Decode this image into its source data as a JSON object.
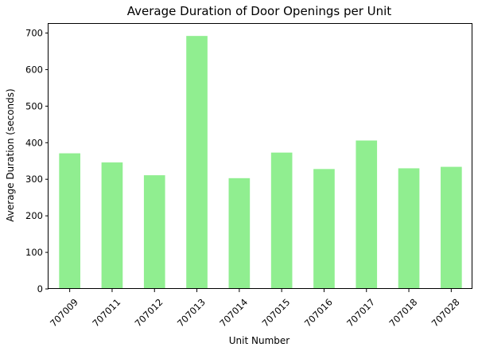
{
  "chart_data": {
    "type": "bar",
    "title": "Average Duration of Door Openings per Unit",
    "xlabel": "Unit Number",
    "ylabel": "Average Duration (seconds)",
    "categories": [
      "707009",
      "707011",
      "707012",
      "707013",
      "707014",
      "707015",
      "707016",
      "707017",
      "707018",
      "707028"
    ],
    "values": [
      371,
      346,
      311,
      692,
      303,
      373,
      328,
      406,
      330,
      334
    ],
    "ylim": [
      0,
      725
    ],
    "yticks": [
      0,
      100,
      200,
      300,
      400,
      500,
      600,
      700
    ],
    "grid": false,
    "legend": "none",
    "bar_color": "#90ee90"
  }
}
